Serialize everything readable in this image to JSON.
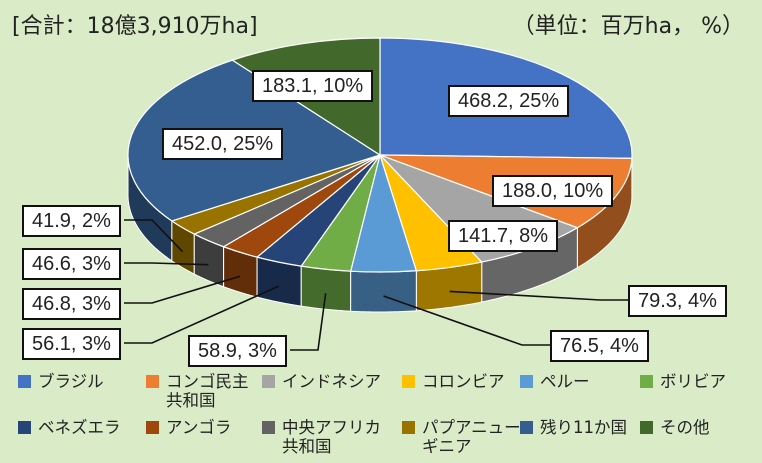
{
  "header": {
    "total_label": "[合計：18億3,910万ha]",
    "unit_label": "（単位：百万ha，  %）"
  },
  "chart_data": {
    "type": "pie",
    "style": "3d",
    "start": "top, clockwise",
    "slices": [
      {
        "name": "ブラジル",
        "value": 468.2,
        "pct": 25,
        "label": "468.2, 25%",
        "color": "#4472c4"
      },
      {
        "name": "コンゴ民主共和国",
        "value": 188.0,
        "pct": 10,
        "label": "188.0, 10%",
        "color": "#ed7d31"
      },
      {
        "name": "インドネシア",
        "value": 141.7,
        "pct": 8,
        "label": "141.7, 8%",
        "color": "#a5a5a5"
      },
      {
        "name": "コロンビア",
        "value": 79.3,
        "pct": 4,
        "label": "79.3, 4%",
        "color": "#ffc000"
      },
      {
        "name": "ペルー",
        "value": 76.5,
        "pct": 4,
        "label": "76.5, 4%",
        "color": "#5b9bd5"
      },
      {
        "name": "ボリビア",
        "value": 58.9,
        "pct": 3,
        "label": "58.9, 3%",
        "color": "#70ad47"
      },
      {
        "name": "ベネズエラ",
        "value": 56.1,
        "pct": 3,
        "label": "56.1, 3%",
        "color": "#264478"
      },
      {
        "name": "アンゴラ",
        "value": 46.8,
        "pct": 3,
        "label": "46.8, 3%",
        "color": "#9e480e"
      },
      {
        "name": "中央アフリカ共和国",
        "value": 46.6,
        "pct": 3,
        "label": "46.6, 3%",
        "color": "#636363"
      },
      {
        "name": "パプアニューギニア",
        "value": 41.9,
        "pct": 2,
        "label": "41.9, 2%",
        "color": "#997300"
      },
      {
        "name": "残り11か国",
        "value": 452.0,
        "pct": 25,
        "label": "452.0, 25%",
        "color": "#335e8f"
      },
      {
        "name": "その他",
        "value": 183.1,
        "pct": 10,
        "label": "183.1, 10%",
        "color": "#43682b"
      }
    ],
    "legend": {
      "placement": "bottom",
      "entries": [
        {
          "text": "ブラジル",
          "color": "#4472c4"
        },
        {
          "text": "コンゴ民主\n共和国",
          "color": "#ed7d31"
        },
        {
          "text": "インドネシア",
          "color": "#a5a5a5"
        },
        {
          "text": "コロンビア",
          "color": "#ffc000"
        },
        {
          "text": "ペルー",
          "color": "#5b9bd5"
        },
        {
          "text": "ボリビア",
          "color": "#70ad47"
        },
        {
          "text": "ベネズエラ",
          "color": "#264478"
        },
        {
          "text": "アンゴラ",
          "color": "#9e480e"
        },
        {
          "text": "中央アフリカ\n共和国",
          "color": "#636363"
        },
        {
          "text": "パプアニュー\nギニア",
          "color": "#997300"
        },
        {
          "text": "残り11か国",
          "color": "#335e8f"
        },
        {
          "text": "その他",
          "color": "#43682b"
        }
      ]
    }
  }
}
